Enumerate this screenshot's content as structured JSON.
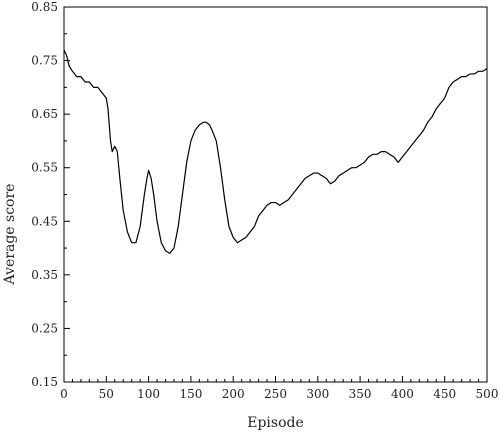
{
  "chart_data": {
    "type": "line",
    "title": "",
    "xlabel": "Episode",
    "ylabel": "Average score",
    "xlim": [
      0,
      500
    ],
    "ylim": [
      0.15,
      0.85
    ],
    "x_ticks": [
      0,
      50,
      100,
      150,
      200,
      250,
      300,
      350,
      400,
      450,
      500
    ],
    "y_ticks": [
      0.15,
      0.25,
      0.35,
      0.45,
      0.55,
      0.65,
      0.75,
      0.85
    ],
    "x_tick_labels": [
      "0",
      "50",
      "100",
      "150",
      "200",
      "250",
      "300",
      "350",
      "400",
      "450",
      "500"
    ],
    "y_tick_labels": [
      "0.15",
      "0.25",
      "0.35",
      "0.45",
      "0.55",
      "0.65",
      "0.75",
      "0.85"
    ],
    "grid": false,
    "legend": "none",
    "series": [
      {
        "color": "#000000",
        "x": [
          0,
          3,
          6,
          10,
          15,
          20,
          25,
          30,
          35,
          40,
          45,
          50,
          52,
          55,
          57,
          60,
          63,
          66,
          70,
          75,
          80,
          85,
          90,
          95,
          98,
          100,
          103,
          106,
          110,
          115,
          120,
          125,
          130,
          135,
          140,
          145,
          150,
          155,
          160,
          165,
          168,
          172,
          175,
          180,
          185,
          190,
          195,
          200,
          205,
          210,
          215,
          220,
          225,
          230,
          235,
          240,
          245,
          250,
          255,
          260,
          265,
          270,
          275,
          280,
          285,
          290,
          295,
          300,
          305,
          310,
          315,
          320,
          325,
          330,
          335,
          340,
          345,
          350,
          355,
          360,
          365,
          370,
          375,
          380,
          385,
          390,
          395,
          400,
          405,
          410,
          415,
          420,
          425,
          430,
          435,
          440,
          445,
          450,
          455,
          460,
          465,
          470,
          475,
          480,
          485,
          490,
          495,
          500
        ],
        "y": [
          0.77,
          0.76,
          0.74,
          0.73,
          0.72,
          0.72,
          0.71,
          0.71,
          0.7,
          0.7,
          0.69,
          0.68,
          0.66,
          0.6,
          0.58,
          0.59,
          0.58,
          0.53,
          0.47,
          0.43,
          0.41,
          0.41,
          0.44,
          0.5,
          0.53,
          0.545,
          0.53,
          0.5,
          0.45,
          0.41,
          0.395,
          0.39,
          0.4,
          0.44,
          0.5,
          0.56,
          0.6,
          0.62,
          0.63,
          0.635,
          0.635,
          0.63,
          0.62,
          0.6,
          0.55,
          0.49,
          0.44,
          0.42,
          0.41,
          0.415,
          0.42,
          0.43,
          0.44,
          0.46,
          0.47,
          0.48,
          0.485,
          0.485,
          0.48,
          0.485,
          0.49,
          0.5,
          0.51,
          0.52,
          0.53,
          0.535,
          0.54,
          0.54,
          0.535,
          0.53,
          0.52,
          0.525,
          0.535,
          0.54,
          0.545,
          0.55,
          0.55,
          0.555,
          0.56,
          0.57,
          0.575,
          0.575,
          0.58,
          0.58,
          0.575,
          0.57,
          0.56,
          0.57,
          0.58,
          0.59,
          0.6,
          0.61,
          0.62,
          0.635,
          0.645,
          0.66,
          0.67,
          0.68,
          0.7,
          0.71,
          0.715,
          0.72,
          0.72,
          0.725,
          0.725,
          0.73,
          0.73,
          0.735
        ]
      }
    ]
  }
}
